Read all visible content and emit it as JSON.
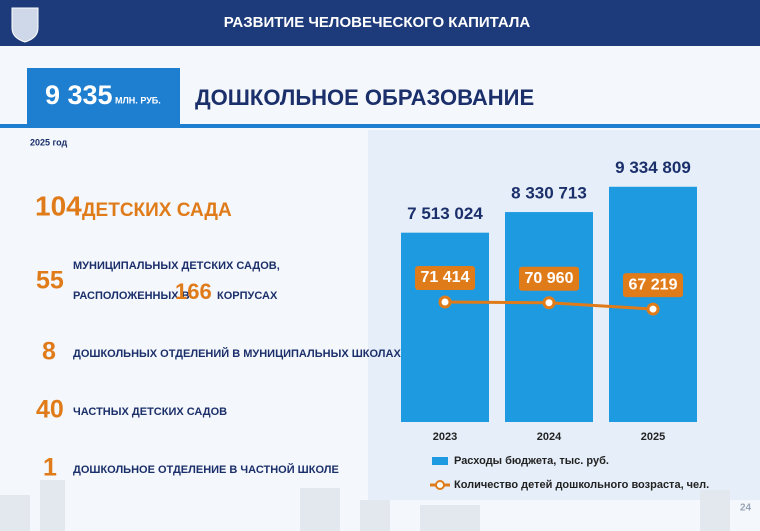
{
  "header": {
    "title": "РАЗВИТИЕ ЧЕЛОВЕЧЕСКОГО КАПИТАЛА"
  },
  "budget": {
    "amount": "9 335",
    "unit": "МЛН. РУБ."
  },
  "section_title": "ДОШКОЛЬНОЕ ОБРАЗОВАНИЕ",
  "year_note": "2025 год",
  "stats": {
    "kindergartens": {
      "number": 104,
      "text": "ДЕТСКИХ САДА"
    },
    "municipal": {
      "number": 55,
      "line1": "МУНИЦИПАЛЬНЫХ ДЕТСКИХ САДОВ,",
      "line2": "РАСПОЛОЖЕННЫХ В",
      "buildings": 166,
      "line3": "КОРПУСАХ"
    },
    "school_departments": {
      "number": 8,
      "text": "ДОШКОЛЬНЫХ ОТДЕЛЕНИЙ В МУНИЦИПАЛЬНЫХ ШКОЛАХ"
    },
    "private": {
      "number": 40,
      "text": "ЧАСТНЫХ ДЕТСКИХ САДОВ"
    },
    "private_school": {
      "number": 1,
      "text": "ДОШКОЛЬНОЕ ОТДЕЛЕНИЕ В ЧАСТНОЙ ШКОЛЕ"
    }
  },
  "page_number": 24,
  "chart_data": {
    "type": "bar_line",
    "categories": [
      "2023",
      "2024",
      "2025"
    ],
    "series": [
      {
        "name": "Расходы бюджета, тыс. руб.",
        "type": "bar",
        "color": "#1e9be0",
        "values": [
          7513024,
          8330713,
          9334809
        ],
        "value_labels": [
          "7 513 024",
          "8 330 713",
          "9 334 809"
        ]
      },
      {
        "name": "Количество детей дошкольного возраста, чел.",
        "type": "line",
        "axis": "y2",
        "color": "#e07b1a",
        "values": [
          71414,
          70960,
          67219
        ],
        "value_labels": [
          "71 414",
          "70 960",
          "67 219"
        ]
      }
    ],
    "ylim": [
      0,
      10000000
    ],
    "y2lim": [
      0,
      150000
    ],
    "legend": "bottom"
  }
}
